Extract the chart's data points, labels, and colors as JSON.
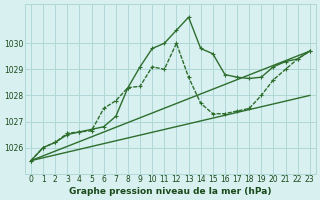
{
  "title": "Graphe pression niveau de la mer (hPa)",
  "xlabel": "Graphe pression niveau de la mer (hPa)",
  "x_hours": [
    0,
    1,
    2,
    3,
    4,
    5,
    6,
    7,
    8,
    9,
    10,
    11,
    12,
    13,
    14,
    15,
    16,
    17,
    18,
    19,
    20,
    21,
    22,
    23
  ],
  "series1_x": [
    0,
    1,
    2,
    3,
    4,
    5,
    6,
    7,
    8,
    9,
    10,
    11,
    12,
    13,
    14,
    15,
    16,
    17,
    18,
    19,
    20,
    21,
    22,
    23
  ],
  "series1_y": [
    1025.5,
    1026.0,
    1026.2,
    1026.5,
    1026.6,
    1026.7,
    1026.8,
    1027.2,
    1028.3,
    1029.1,
    1029.8,
    1030.0,
    1030.5,
    1031.0,
    1029.8,
    1029.6,
    1028.8,
    1028.7,
    1028.65,
    1028.7,
    1029.1,
    1029.3,
    1029.4,
    1029.7
  ],
  "series2_x": [
    0,
    1,
    2,
    3,
    4,
    5,
    6,
    7,
    8,
    9,
    10,
    11,
    12,
    13,
    14,
    15,
    16,
    17,
    18,
    19,
    20,
    21,
    22,
    23
  ],
  "series2_y": [
    1025.5,
    1026.0,
    1026.2,
    1026.55,
    1026.6,
    1026.65,
    1027.5,
    1027.8,
    1028.3,
    1028.35,
    1029.1,
    1029.0,
    1030.0,
    1028.7,
    1027.7,
    1027.3,
    1027.3,
    1027.4,
    1027.5,
    1028.0,
    1028.6,
    1029.0,
    1029.4,
    1029.7
  ],
  "line1_x": [
    0,
    23
  ],
  "line1_y": [
    1025.5,
    1029.7
  ],
  "line2_x": [
    0,
    23
  ],
  "line2_y": [
    1025.5,
    1028.0
  ],
  "ylim": [
    1025.0,
    1031.5
  ],
  "yticks": [
    1026,
    1027,
    1028,
    1029,
    1030
  ],
  "xlim": [
    -0.5,
    23.5
  ],
  "xticks": [
    0,
    1,
    2,
    3,
    4,
    5,
    6,
    7,
    8,
    9,
    10,
    11,
    12,
    13,
    14,
    15,
    16,
    17,
    18,
    19,
    20,
    21,
    22,
    23
  ],
  "bg_color": "#d8f0f0",
  "grid_color": "#b0d8d8",
  "line_color": "#2d6e2d",
  "text_color": "#1a4a1a",
  "label_fontsize": 6.5,
  "tick_fontsize": 5.5
}
